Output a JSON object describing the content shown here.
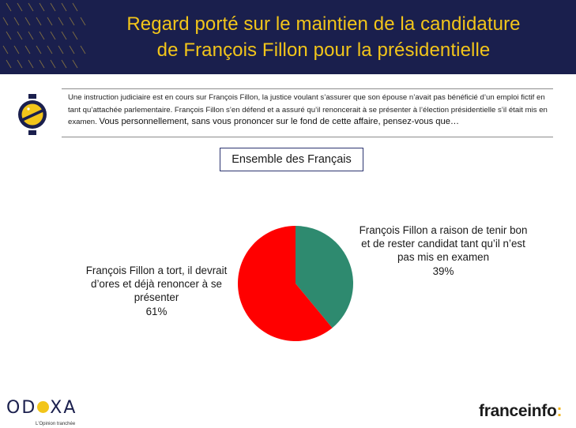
{
  "header": {
    "title_line1": "Regard porté sur le maintien de la candidature",
    "title_line2": "de François Fillon pour la présidentielle"
  },
  "question": {
    "context": "Une instruction judiciaire est en cours sur François Fillon, la justice voulant s’assurer que son épouse n’avait pas bénéficié d’un emploi fictif en tant qu’attachée parlementaire. François Fillon s’en défend et a assuré qu’il renoncerait à se présenter à l’élection présidentielle s’il était mis en examen.",
    "lead": "Vous personnellement, sans vous prononcer sur le fond de cette affaire, pensez-vous que…",
    "icon": "question-coin-icon"
  },
  "audience": "Ensemble des Français",
  "chart_data": {
    "type": "pie",
    "title": "",
    "slices": [
      {
        "label": "François Fillon a raison de tenir bon et de rester candidat tant qu’il n’est pas mis en examen",
        "value": 39,
        "value_label": "39%",
        "color": "#2e8a6f"
      },
      {
        "label": "François Fillon a tort, il devrait d’ores et déjà renoncer à se présenter",
        "value": 61,
        "value_label": "61%",
        "color": "#ff0000"
      }
    ],
    "start_angle_deg": 0,
    "direction": "clockwise"
  },
  "brands": {
    "left_pre": "OD",
    "left_post": "XA",
    "left_tagline": "L'Opinion tranchée",
    "right_name": "franceinfo",
    "right_suffix": ":"
  },
  "colors": {
    "header_bg": "#1a1f4d",
    "title": "#f2c51a",
    "accent": "#f2c51a"
  }
}
